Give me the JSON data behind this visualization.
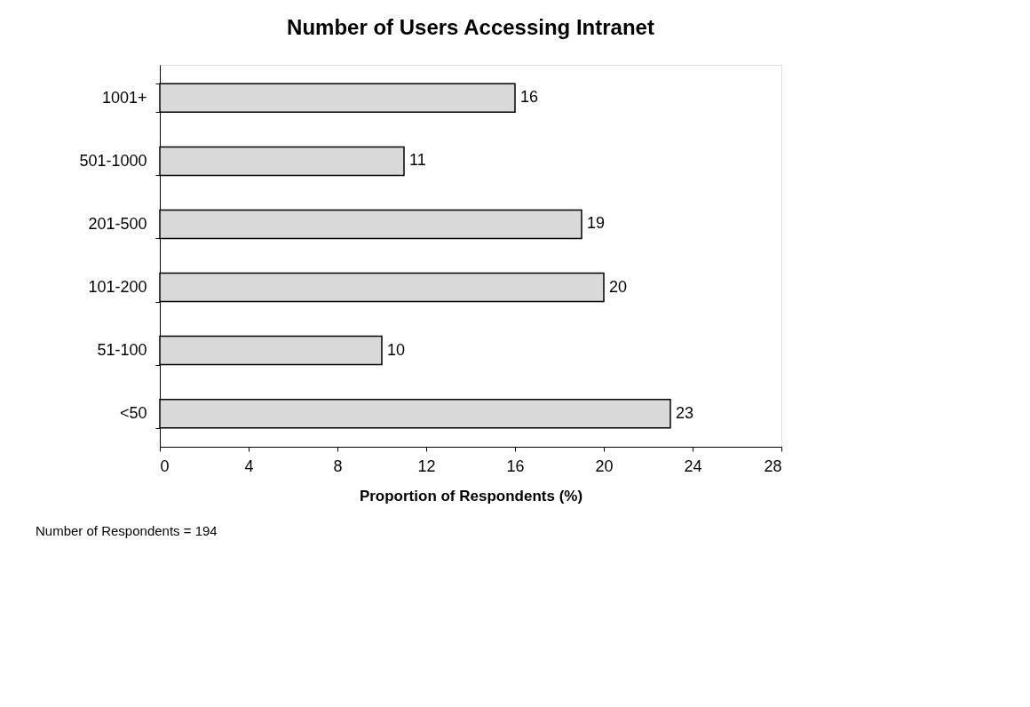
{
  "chart_data": {
    "type": "bar",
    "orientation": "horizontal",
    "title": "Number of Users Accessing Intranet",
    "xlabel": "Proportion of Respondents (%)",
    "categories": [
      "1001+",
      "501-1000",
      "201-500",
      "101-200",
      "51-100",
      "<50"
    ],
    "values": [
      16,
      11,
      19,
      20,
      10,
      23
    ],
    "color": "#d9d9d9",
    "xlim": [
      0,
      28
    ],
    "xticks": [
      0,
      4,
      8,
      12,
      16,
      20,
      24,
      28
    ],
    "grid": false,
    "data_labels": true,
    "annotations": [
      "Number of Respondents = 194"
    ]
  }
}
